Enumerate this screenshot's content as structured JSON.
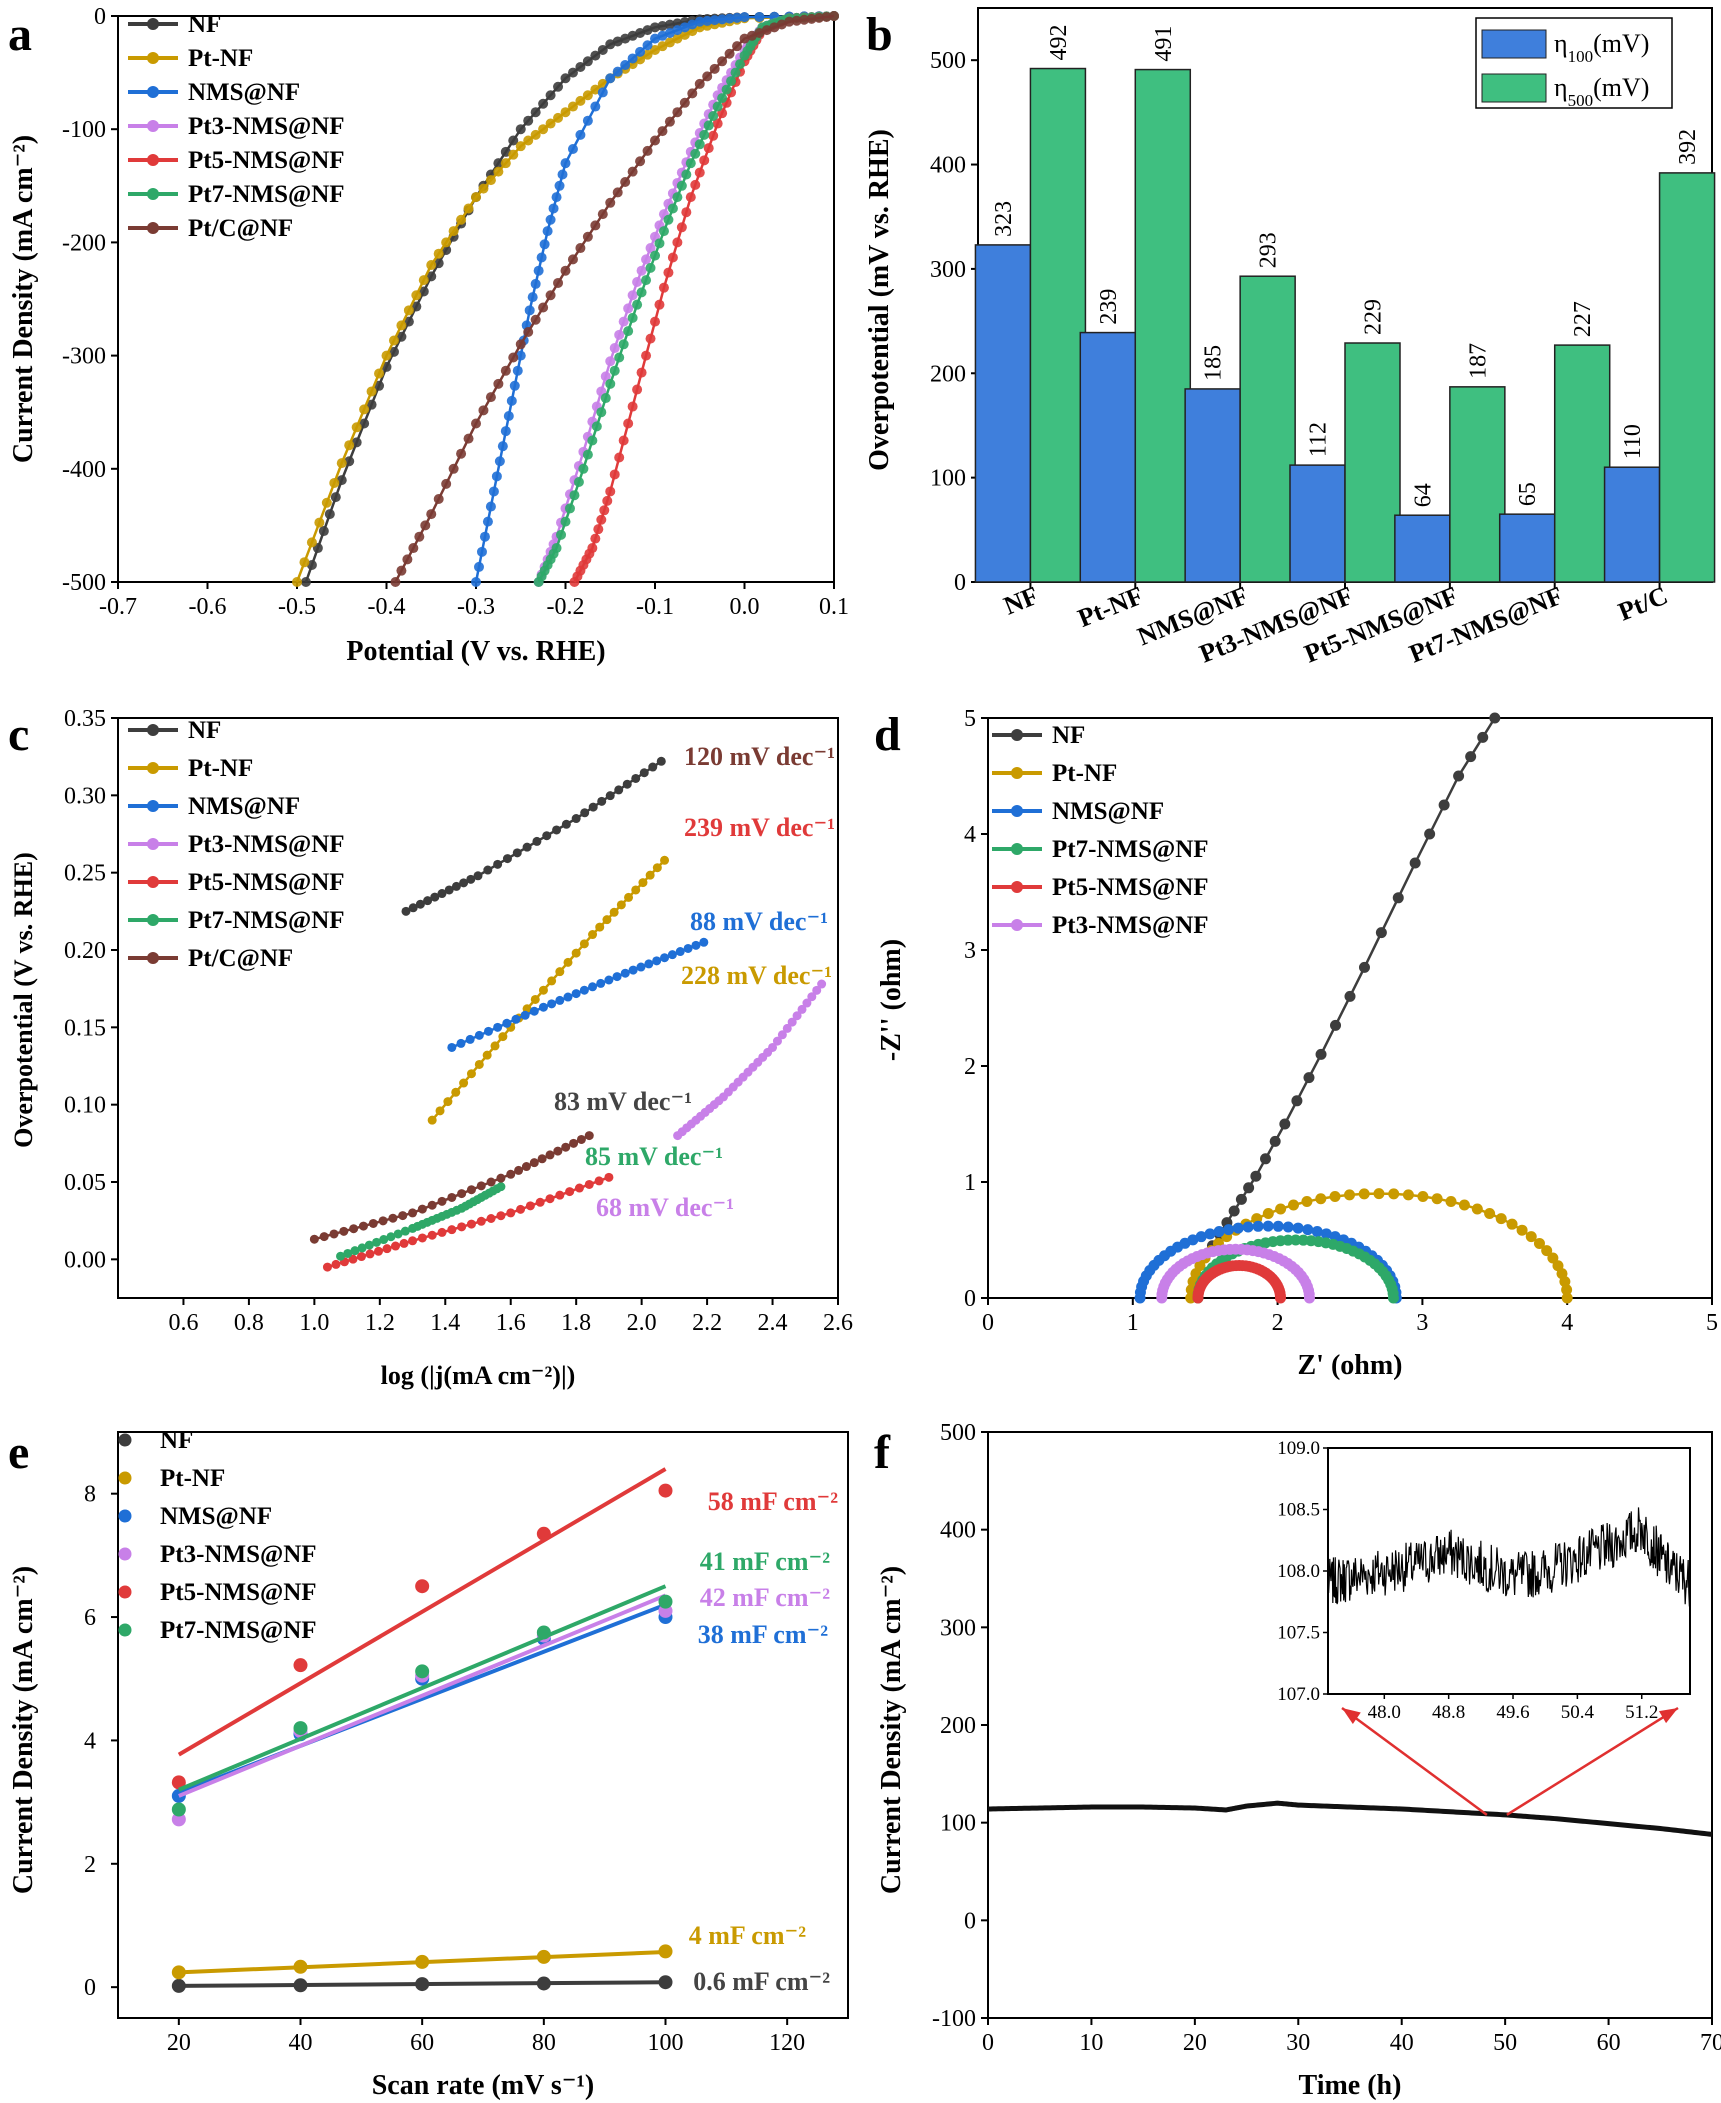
{
  "colors": {
    "NF": "#3d3d3d",
    "Pt-NF": "#c99a00",
    "NMS@NF": "#1f6fd6",
    "Pt3-NMS@NF": "#c880e8",
    "Pt5-NMS@NF": "#e03a3a",
    "Pt7-NMS@NF": "#2ea868",
    "Pt/C@NF": "#7a3b33",
    "bar_eta100": "#3f7fdc",
    "bar_eta500": "#3fbf80",
    "arrow": "#e03030"
  },
  "chart_data": [
    {
      "panel": "a",
      "type": "line",
      "xlabel": "Potential (V vs. RHE)",
      "ylabel": "Current Density (mA cm⁻²)",
      "xlim": [
        -0.7,
        0.1
      ],
      "ylim": [
        -500,
        0
      ],
      "xticks": [
        "-0.7",
        "-0.6",
        "-0.5",
        "-0.4",
        "-0.3",
        "-0.2",
        "-0.1",
        "0.0",
        "0.1"
      ],
      "yticks": [
        "0",
        "-100",
        "-200",
        "-300",
        "-400",
        "-500"
      ],
      "legend": "top-left",
      "series": [
        {
          "name": "NF",
          "x": [
            0.1,
            0.0,
            -0.05,
            -0.1,
            -0.15,
            -0.2,
            -0.25,
            -0.3,
            -0.35,
            -0.4,
            -0.45,
            -0.49
          ],
          "y": [
            0,
            -1,
            -3,
            -10,
            -25,
            -55,
            -100,
            -160,
            -230,
            -310,
            -410,
            -500
          ]
        },
        {
          "name": "Pt-NF",
          "x": [
            0.1,
            0.0,
            -0.05,
            -0.1,
            -0.15,
            -0.2,
            -0.25,
            -0.3,
            -0.35,
            -0.4,
            -0.45,
            -0.5
          ],
          "y": [
            0,
            -2,
            -10,
            -30,
            -55,
            -85,
            -115,
            -160,
            -220,
            -300,
            -395,
            -500
          ]
        },
        {
          "name": "NMS@NF",
          "x": [
            0.1,
            0.0,
            -0.05,
            -0.1,
            -0.15,
            -0.2,
            -0.22,
            -0.24,
            -0.26,
            -0.28,
            -0.3
          ],
          "y": [
            0,
            -1,
            -5,
            -20,
            -55,
            -130,
            -190,
            -260,
            -340,
            -420,
            -500
          ]
        },
        {
          "name": "Pt3-NMS@NF",
          "x": [
            0.1,
            0.05,
            0.02,
            0.0,
            -0.03,
            -0.06,
            -0.09,
            -0.12,
            -0.15,
            -0.18,
            -0.21,
            -0.23
          ],
          "y": [
            0,
            -2,
            -10,
            -30,
            -70,
            -120,
            -175,
            -235,
            -305,
            -385,
            -460,
            -500
          ]
        },
        {
          "name": "Pt5-NMS@NF",
          "x": [
            0.1,
            0.05,
            0.02,
            0.0,
            -0.03,
            -0.06,
            -0.09,
            -0.12,
            -0.15,
            -0.17,
            -0.19
          ],
          "y": [
            0,
            -2,
            -12,
            -40,
            -95,
            -160,
            -240,
            -330,
            -420,
            -470,
            -500
          ]
        },
        {
          "name": "Pt7-NMS@NF",
          "x": [
            0.1,
            0.05,
            0.02,
            0.0,
            -0.03,
            -0.06,
            -0.09,
            -0.12,
            -0.15,
            -0.18,
            -0.21,
            -0.23
          ],
          "y": [
            0,
            -2,
            -10,
            -35,
            -80,
            -130,
            -190,
            -255,
            -325,
            -400,
            -470,
            -500
          ]
        },
        {
          "name": "Pt/C@NF",
          "x": [
            0.1,
            0.05,
            0.0,
            -0.05,
            -0.1,
            -0.15,
            -0.2,
            -0.25,
            -0.3,
            -0.35,
            -0.39
          ],
          "y": [
            0,
            -5,
            -20,
            -60,
            -110,
            -165,
            -225,
            -290,
            -360,
            -440,
            -500
          ]
        }
      ]
    },
    {
      "panel": "b",
      "type": "bar",
      "ylabel": "Overpotential (mV vs. RHE)",
      "ylim": [
        0,
        550
      ],
      "yticks": [
        "0",
        "100",
        "200",
        "300",
        "400",
        "500"
      ],
      "categories": [
        "NF",
        "Pt-NF",
        "NMS@NF",
        "Pt3-NMS@NF",
        "Pt5-NMS@NF",
        "Pt7-NMS@NF",
        "Pt/C"
      ],
      "legend": "top-right",
      "series": [
        {
          "name": "η",
          "sub": "100",
          "suffix": "(mV)",
          "values": [
            323,
            239,
            185,
            112,
            64,
            65,
            110
          ]
        },
        {
          "name": "η",
          "sub": "500",
          "suffix": "(mV)",
          "values": [
            492,
            491,
            293,
            229,
            187,
            227,
            392
          ]
        }
      ]
    },
    {
      "panel": "c",
      "type": "line",
      "xlabel": "log (|j(mA cm⁻²)|)",
      "ylabel": "Overpotential (V vs. RHE)",
      "xlim": [
        0.4,
        2.6
      ],
      "ylim": [
        -0.025,
        0.35
      ],
      "xticks": [
        "0.6",
        "0.8",
        "1.0",
        "1.2",
        "1.4",
        "1.6",
        "1.8",
        "2.0",
        "2.2",
        "2.4",
        "2.6"
      ],
      "yticks": [
        "0.00",
        "0.05",
        "0.10",
        "0.15",
        "0.20",
        "0.25",
        "0.30",
        "0.35"
      ],
      "legend": "top-left",
      "series": [
        {
          "name": "NF",
          "x": [
            1.28,
            1.5,
            1.8,
            2.06
          ],
          "y": [
            0.225,
            0.248,
            0.285,
            0.322
          ],
          "label": "120 mV dec⁻¹"
        },
        {
          "name": "Pt-NF",
          "x": [
            1.36,
            1.6,
            1.85,
            2.07
          ],
          "y": [
            0.09,
            0.15,
            0.21,
            0.258
          ],
          "label": "239 mV dec⁻¹"
        },
        {
          "name": "NMS@NF",
          "x": [
            1.42,
            1.7,
            1.95,
            2.19
          ],
          "y": [
            0.137,
            0.163,
            0.185,
            0.205
          ],
          "label": "88 mV dec⁻¹"
        },
        {
          "name": "Pt3-NMS@NF",
          "x": [
            2.11,
            2.25,
            2.4,
            2.55
          ],
          "y": [
            0.08,
            0.105,
            0.137,
            0.178
          ],
          "label": "228 mV dec⁻¹"
        },
        {
          "name": "Pt5-NMS@NF",
          "x": [
            1.04,
            1.3,
            1.6,
            1.9
          ],
          "y": [
            -0.005,
            0.012,
            0.03,
            0.053
          ],
          "label": "68 mV dec⁻¹"
        },
        {
          "name": "Pt7-NMS@NF",
          "x": [
            1.08,
            1.3,
            1.45,
            1.57
          ],
          "y": [
            0.002,
            0.02,
            0.033,
            0.047
          ],
          "label": "85 mV dec⁻¹"
        },
        {
          "name": "Pt/C@NF",
          "x": [
            1.0,
            1.3,
            1.6,
            1.84
          ],
          "y": [
            0.013,
            0.03,
            0.055,
            0.08
          ],
          "label": "83 mV dec⁻¹"
        }
      ]
    },
    {
      "panel": "d",
      "type": "scatter",
      "xlabel": "Z' (ohm)",
      "ylabel": "-Z'' (ohm)",
      "xlim": [
        0,
        5
      ],
      "ylim": [
        0,
        5
      ],
      "xticks": [
        "0",
        "1",
        "2",
        "3",
        "4",
        "5"
      ],
      "yticks": [
        "0",
        "1",
        "2",
        "3",
        "4",
        "5"
      ],
      "legend": "top-left",
      "series": [
        {
          "name": "NF",
          "x": [
            1.55,
            1.7,
            1.85,
            2.05,
            2.3,
            2.6,
            2.95,
            3.25,
            3.5
          ],
          "y": [
            0.45,
            0.75,
            1.05,
            1.5,
            2.1,
            2.85,
            3.75,
            4.5,
            5.0
          ]
        },
        {
          "name": "Pt-NF",
          "semicircle": [
            1.4,
            4.0,
            0.9
          ]
        },
        {
          "name": "NMS@NF",
          "semicircle": [
            1.05,
            2.82,
            0.62
          ]
        },
        {
          "name": "Pt7-NMS@NF",
          "semicircle": [
            1.45,
            2.8,
            0.5
          ]
        },
        {
          "name": "Pt5-NMS@NF",
          "semicircle": [
            1.45,
            2.02,
            0.28
          ]
        },
        {
          "name": "Pt3-NMS@NF",
          "semicircle": [
            1.2,
            2.22,
            0.42
          ]
        }
      ]
    },
    {
      "panel": "e",
      "type": "scatter",
      "xlabel": "Scan rate (mV s⁻¹)",
      "ylabel": "Current Density (mA cm⁻²)",
      "xlim": [
        10,
        130
      ],
      "ylim": [
        -0.5,
        9
      ],
      "xticks": [
        "20",
        "40",
        "60",
        "80",
        "100",
        "120"
      ],
      "yticks": [
        "0",
        "2",
        "4",
        "6",
        "8"
      ],
      "legend": "top-left",
      "x": [
        20,
        40,
        60,
        80,
        100
      ],
      "series": [
        {
          "name": "NF",
          "values": [
            0.02,
            0.03,
            0.05,
            0.06,
            0.08
          ],
          "fit": [
            0.02,
            0.08
          ],
          "label": "0.6 mF cm⁻²"
        },
        {
          "name": "Pt-NF",
          "values": [
            0.24,
            0.33,
            0.41,
            0.49,
            0.58
          ],
          "fit": [
            0.24,
            0.57
          ],
          "label": "4 mF cm⁻²"
        },
        {
          "name": "NMS@NF",
          "values": [
            3.1,
            4.1,
            5.0,
            5.65,
            6.0
          ],
          "fit": [
            3.15,
            6.2
          ],
          "label": "38 mF cm⁻²"
        },
        {
          "name": "Pt3-NMS@NF",
          "values": [
            2.72,
            4.15,
            5.05,
            5.7,
            6.1
          ],
          "fit": [
            3.1,
            6.35
          ],
          "label": "42 mF cm⁻²"
        },
        {
          "name": "Pt5-NMS@NF",
          "values": [
            3.32,
            5.22,
            6.5,
            7.35,
            8.05
          ],
          "fit": [
            3.77,
            8.4
          ],
          "label": "58 mF cm⁻²"
        },
        {
          "name": "Pt7-NMS@NF",
          "values": [
            2.88,
            4.2,
            5.12,
            5.75,
            6.25
          ],
          "fit": [
            3.2,
            6.5
          ],
          "label": "41 mF cm⁻²"
        }
      ]
    },
    {
      "panel": "f",
      "type": "line",
      "xlabel": "Time (h)",
      "ylabel": "Current Density (mA cm⁻²)",
      "xlim": [
        0,
        70
      ],
      "ylim": [
        -100,
        500
      ],
      "xticks": [
        "0",
        "10",
        "20",
        "30",
        "40",
        "50",
        "60",
        "70"
      ],
      "yticks": [
        "-100",
        "0",
        "100",
        "200",
        "300",
        "400",
        "500"
      ],
      "series": [
        {
          "name": "",
          "x": [
            0,
            5,
            10,
            15,
            20,
            23,
            25,
            28,
            30,
            35,
            40,
            45,
            50,
            55,
            60,
            65,
            70
          ],
          "y": [
            114,
            115,
            116,
            116,
            115,
            113,
            117,
            120,
            118,
            116,
            114,
            111,
            108,
            104,
            99,
            94,
            88
          ]
        }
      ],
      "inset": {
        "xlim": [
          47.3,
          51.8
        ],
        "ylim": [
          107.0,
          109.0
        ],
        "xticks": [
          "48.0",
          "48.8",
          "49.6",
          "50.4",
          "51.2"
        ],
        "yticks": [
          "107.0",
          "107.5",
          "108.0",
          "108.5",
          "109.0"
        ],
        "x": [
          47.3,
          47.6,
          48.0,
          48.4,
          48.8,
          49.2,
          49.6,
          50.0,
          50.4,
          50.8,
          51.2,
          51.5,
          51.8
        ],
        "y": [
          107.9,
          107.95,
          108.0,
          108.05,
          108.15,
          108.05,
          107.95,
          108.0,
          108.1,
          108.2,
          108.35,
          108.05,
          107.9
        ],
        "noise": 0.2
      }
    }
  ]
}
